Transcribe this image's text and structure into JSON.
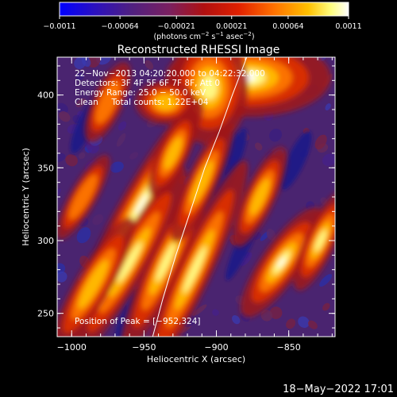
{
  "chart_data": {
    "type": "heatmap",
    "title": "Reconstructed RHESSI Image",
    "xlabel": "Heliocentric X (arcsec)",
    "ylabel": "Heliocentric Y (arcsec)",
    "xlim": [
      -1010,
      -818
    ],
    "ylim": [
      234,
      426
    ],
    "x_ticks": [
      -1000,
      -950,
      -900,
      -850
    ],
    "x_tick_labels": [
      "−1000",
      "−950",
      "−900",
      "−850"
    ],
    "y_ticks": [
      250,
      300,
      350,
      400
    ],
    "y_tick_labels": [
      "250",
      "300",
      "350",
      "400"
    ],
    "colorbar": {
      "range": [
        -0.0011,
        0.0011
      ],
      "ticks": [
        -0.0011,
        -0.00064,
        -0.00021,
        0.00021,
        0.00064,
        0.0011
      ],
      "tick_labels": [
        "−0.0011",
        "−0.00064",
        "−0.00021",
        "0.00021",
        "0.00064",
        "0.0011"
      ],
      "unit_label_parts": [
        "(photons cm",
        "−2",
        " s",
        "−1",
        " asec",
        "−2",
        ")"
      ],
      "colormap": [
        "#0000ff",
        "#3a1a9a",
        "#6a3090",
        "#9a1a50",
        "#d01010",
        "#ff6000",
        "#ffb000",
        "#ffff80",
        "#ffffff"
      ]
    },
    "annotations": [
      "22−Nov−2013 04:20:20.000 to 04:22:32.000",
      "Detectors: 3F 4F 5F 6F 7F 8F, Att 0",
      "Energy Range: 25.0 − 50.0 keV",
      "Clean     Total counts: 1.22E+04",
      "Position of Peak = [−952,324]"
    ],
    "limb_curve": {
      "x": [
        -944,
        -937,
        -928,
        -918,
        -908,
        -898,
        -889,
        -879
      ],
      "y": [
        234,
        260,
        290,
        320,
        350,
        375,
        400,
        426
      ],
      "color": "#ffffff"
    },
    "peak": {
      "x": -952,
      "y": 324
    },
    "bright_features": [
      {
        "x": -878,
        "y": 412,
        "w": 38,
        "h": 18,
        "angle": 0,
        "level": 0.95
      },
      {
        "x": -905,
        "y": 405,
        "w": 18,
        "h": 26,
        "angle": 0,
        "level": 0.9
      },
      {
        "x": -935,
        "y": 395,
        "w": 14,
        "h": 10,
        "angle": 0,
        "level": 0.7
      },
      {
        "x": -952,
        "y": 325,
        "w": 9,
        "h": 55,
        "angle": 30,
        "level": 1.0
      },
      {
        "x": -960,
        "y": 285,
        "w": 8,
        "h": 50,
        "angle": 30,
        "level": 0.85
      },
      {
        "x": -935,
        "y": 285,
        "w": 8,
        "h": 45,
        "angle": 25,
        "level": 0.85
      },
      {
        "x": -915,
        "y": 280,
        "w": 8,
        "h": 55,
        "angle": 25,
        "level": 0.85
      },
      {
        "x": -985,
        "y": 270,
        "w": 8,
        "h": 35,
        "angle": 30,
        "level": 0.65
      },
      {
        "x": -910,
        "y": 340,
        "w": 7,
        "h": 30,
        "angle": 25,
        "level": 0.6
      },
      {
        "x": -855,
        "y": 285,
        "w": 9,
        "h": 30,
        "angle": 35,
        "level": 0.95
      },
      {
        "x": -828,
        "y": 300,
        "w": 7,
        "h": 25,
        "angle": 25,
        "level": 0.75
      },
      {
        "x": -870,
        "y": 330,
        "w": 7,
        "h": 25,
        "angle": 25,
        "level": 0.6
      },
      {
        "x": -930,
        "y": 360,
        "w": 7,
        "h": 22,
        "angle": 25,
        "level": 0.6
      },
      {
        "x": -992,
        "y": 330,
        "w": 6,
        "h": 22,
        "angle": 30,
        "level": 0.55
      },
      {
        "x": -975,
        "y": 395,
        "w": 7,
        "h": 20,
        "angle": 25,
        "level": 0.5
      }
    ],
    "dark_features": [
      {
        "x": -895,
        "y": 345,
        "w": 7,
        "h": 35,
        "angle": 25
      },
      {
        "x": -940,
        "y": 335,
        "w": 5,
        "h": 30,
        "angle": 25
      },
      {
        "x": -880,
        "y": 300,
        "w": 5,
        "h": 30,
        "angle": 25
      },
      {
        "x": -990,
        "y": 380,
        "w": 6,
        "h": 22,
        "angle": 25
      },
      {
        "x": -960,
        "y": 250,
        "w": 5,
        "h": 20,
        "angle": 25
      },
      {
        "x": -845,
        "y": 355,
        "w": 6,
        "h": 22,
        "angle": 25
      },
      {
        "x": -975,
        "y": 300,
        "w": 5,
        "h": 22,
        "angle": 30
      }
    ]
  },
  "footer": {
    "timestamp": "18−May−2022 17:01"
  }
}
